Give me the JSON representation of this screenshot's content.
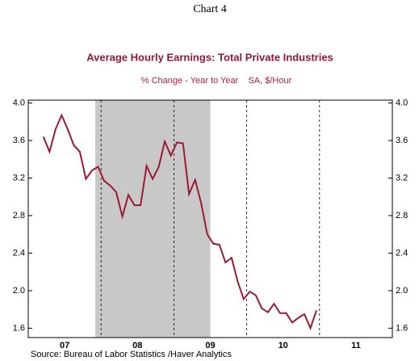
{
  "chart_data": {
    "type": "line",
    "header": "Chart 4",
    "title": "Average Hourly Earnings: Total Private Industries",
    "subtitle": "% Change - Year to Year    SA, $/Hour",
    "source": "Source:  Bureau of Labor Statistics /Haver Analytics",
    "x": [
      2007.208,
      2007.292,
      2007.375,
      2007.458,
      2007.542,
      2007.625,
      2007.708,
      2007.792,
      2007.875,
      2007.958,
      2008.042,
      2008.125,
      2008.208,
      2008.292,
      2008.375,
      2008.458,
      2008.542,
      2008.625,
      2008.708,
      2008.792,
      2008.875,
      2008.958,
      2009.042,
      2009.125,
      2009.208,
      2009.292,
      2009.375,
      2009.458,
      2009.542,
      2009.625,
      2009.708,
      2009.792,
      2009.875,
      2009.958,
      2010.042,
      2010.125,
      2010.208,
      2010.292,
      2010.375,
      2010.458,
      2010.542,
      2010.625,
      2010.708,
      2010.792,
      2010.875,
      2010.958
    ],
    "series": [
      {
        "color": "#9b1b30",
        "values": [
          3.64,
          3.48,
          3.72,
          3.87,
          3.72,
          3.55,
          3.48,
          3.19,
          3.28,
          3.32,
          3.17,
          3.12,
          3.05,
          2.79,
          3.02,
          2.91,
          2.91,
          3.33,
          3.19,
          3.32,
          3.59,
          3.44,
          3.58,
          3.57,
          3.03,
          3.18,
          2.93,
          2.6,
          2.5,
          2.49,
          2.3,
          2.35,
          2.1,
          1.91,
          1.99,
          1.95,
          1.81,
          1.77,
          1.86,
          1.76,
          1.76,
          1.66,
          1.71,
          1.75,
          1.6,
          1.79
        ]
      }
    ],
    "xlim": [
      2007,
      2012
    ],
    "xticks": [
      {
        "value": 2007.5,
        "label": "07"
      },
      {
        "value": 2008.5,
        "label": "08"
      },
      {
        "value": 2009.5,
        "label": "09"
      },
      {
        "value": 2010.5,
        "label": "10"
      },
      {
        "value": 2011.5,
        "label": "11"
      }
    ],
    "xgrid": [
      2008,
      2009,
      2010,
      2011
    ],
    "ylim": [
      1.5,
      4.03
    ],
    "yticks": [
      {
        "value": 1.6,
        "label": "1.6"
      },
      {
        "value": 2,
        "label": "2.0"
      },
      {
        "value": 2.4,
        "label": "2.4"
      },
      {
        "value": 2.8,
        "label": "2.8"
      },
      {
        "value": 3.2,
        "label": "3.2"
      },
      {
        "value": 3.6,
        "label": "3.6"
      },
      {
        "value": 4,
        "label": "4.0"
      }
    ],
    "shade": [
      2007.92,
      2009.5
    ],
    "shade_color": "#c8c8c8"
  }
}
